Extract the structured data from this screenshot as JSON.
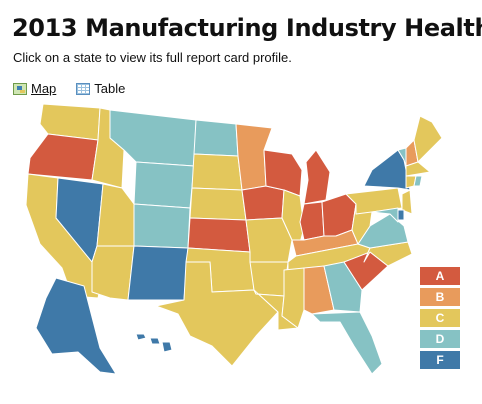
{
  "header": {
    "title": "2013 Manufacturing Industry Health",
    "subtitle": "Click on a state to view its full report card profile."
  },
  "views": [
    {
      "label": "Map",
      "icon": "map-icon",
      "active": true
    },
    {
      "label": "Table",
      "icon": "table-icon",
      "active": false
    }
  ],
  "grade_colors": {
    "A": "#d35a3f",
    "B": "#e89b5c",
    "C": "#e3c75c",
    "D": "#86c2c4",
    "F": "#3f79a8"
  },
  "legend": [
    {
      "grade": "A",
      "label": "A"
    },
    {
      "grade": "B",
      "label": "B"
    },
    {
      "grade": "C",
      "label": "C"
    },
    {
      "grade": "D",
      "label": "D"
    },
    {
      "grade": "F",
      "label": "F"
    }
  ],
  "states": [
    {
      "abbr": "WA",
      "grade": "C"
    },
    {
      "abbr": "OR",
      "grade": "A"
    },
    {
      "abbr": "CA",
      "grade": "C"
    },
    {
      "abbr": "NV",
      "grade": "F"
    },
    {
      "abbr": "ID",
      "grade": "C"
    },
    {
      "abbr": "MT",
      "grade": "D"
    },
    {
      "abbr": "WY",
      "grade": "D"
    },
    {
      "abbr": "UT",
      "grade": "C"
    },
    {
      "abbr": "AZ",
      "grade": "C"
    },
    {
      "abbr": "CO",
      "grade": "D"
    },
    {
      "abbr": "NM",
      "grade": "F"
    },
    {
      "abbr": "ND",
      "grade": "D"
    },
    {
      "abbr": "SD",
      "grade": "C"
    },
    {
      "abbr": "NE",
      "grade": "C"
    },
    {
      "abbr": "KS",
      "grade": "A"
    },
    {
      "abbr": "OK",
      "grade": "C"
    },
    {
      "abbr": "TX",
      "grade": "C"
    },
    {
      "abbr": "MN",
      "grade": "B"
    },
    {
      "abbr": "IA",
      "grade": "A"
    },
    {
      "abbr": "MO",
      "grade": "C"
    },
    {
      "abbr": "AR",
      "grade": "C"
    },
    {
      "abbr": "LA",
      "grade": "C"
    },
    {
      "abbr": "WI",
      "grade": "A"
    },
    {
      "abbr": "IL",
      "grade": "C"
    },
    {
      "abbr": "MI",
      "grade": "A"
    },
    {
      "abbr": "IN",
      "grade": "A"
    },
    {
      "abbr": "OH",
      "grade": "A"
    },
    {
      "abbr": "KY",
      "grade": "B"
    },
    {
      "abbr": "TN",
      "grade": "C"
    },
    {
      "abbr": "MS",
      "grade": "C"
    },
    {
      "abbr": "AL",
      "grade": "B"
    },
    {
      "abbr": "GA",
      "grade": "D"
    },
    {
      "abbr": "FL",
      "grade": "D"
    },
    {
      "abbr": "SC",
      "grade": "A"
    },
    {
      "abbr": "NC",
      "grade": "C"
    },
    {
      "abbr": "VA",
      "grade": "D"
    },
    {
      "abbr": "WV",
      "grade": "C"
    },
    {
      "abbr": "PA",
      "grade": "C"
    },
    {
      "abbr": "NY",
      "grade": "F"
    },
    {
      "abbr": "VT",
      "grade": "D"
    },
    {
      "abbr": "NH",
      "grade": "B"
    },
    {
      "abbr": "ME",
      "grade": "C"
    },
    {
      "abbr": "MA",
      "grade": "C"
    },
    {
      "abbr": "CT",
      "grade": "C"
    },
    {
      "abbr": "RI",
      "grade": "D"
    },
    {
      "abbr": "NJ",
      "grade": "C"
    },
    {
      "abbr": "DE",
      "grade": "F"
    },
    {
      "abbr": "MD",
      "grade": "D"
    },
    {
      "abbr": "AK",
      "grade": "F"
    },
    {
      "abbr": "HI",
      "grade": "F"
    }
  ]
}
